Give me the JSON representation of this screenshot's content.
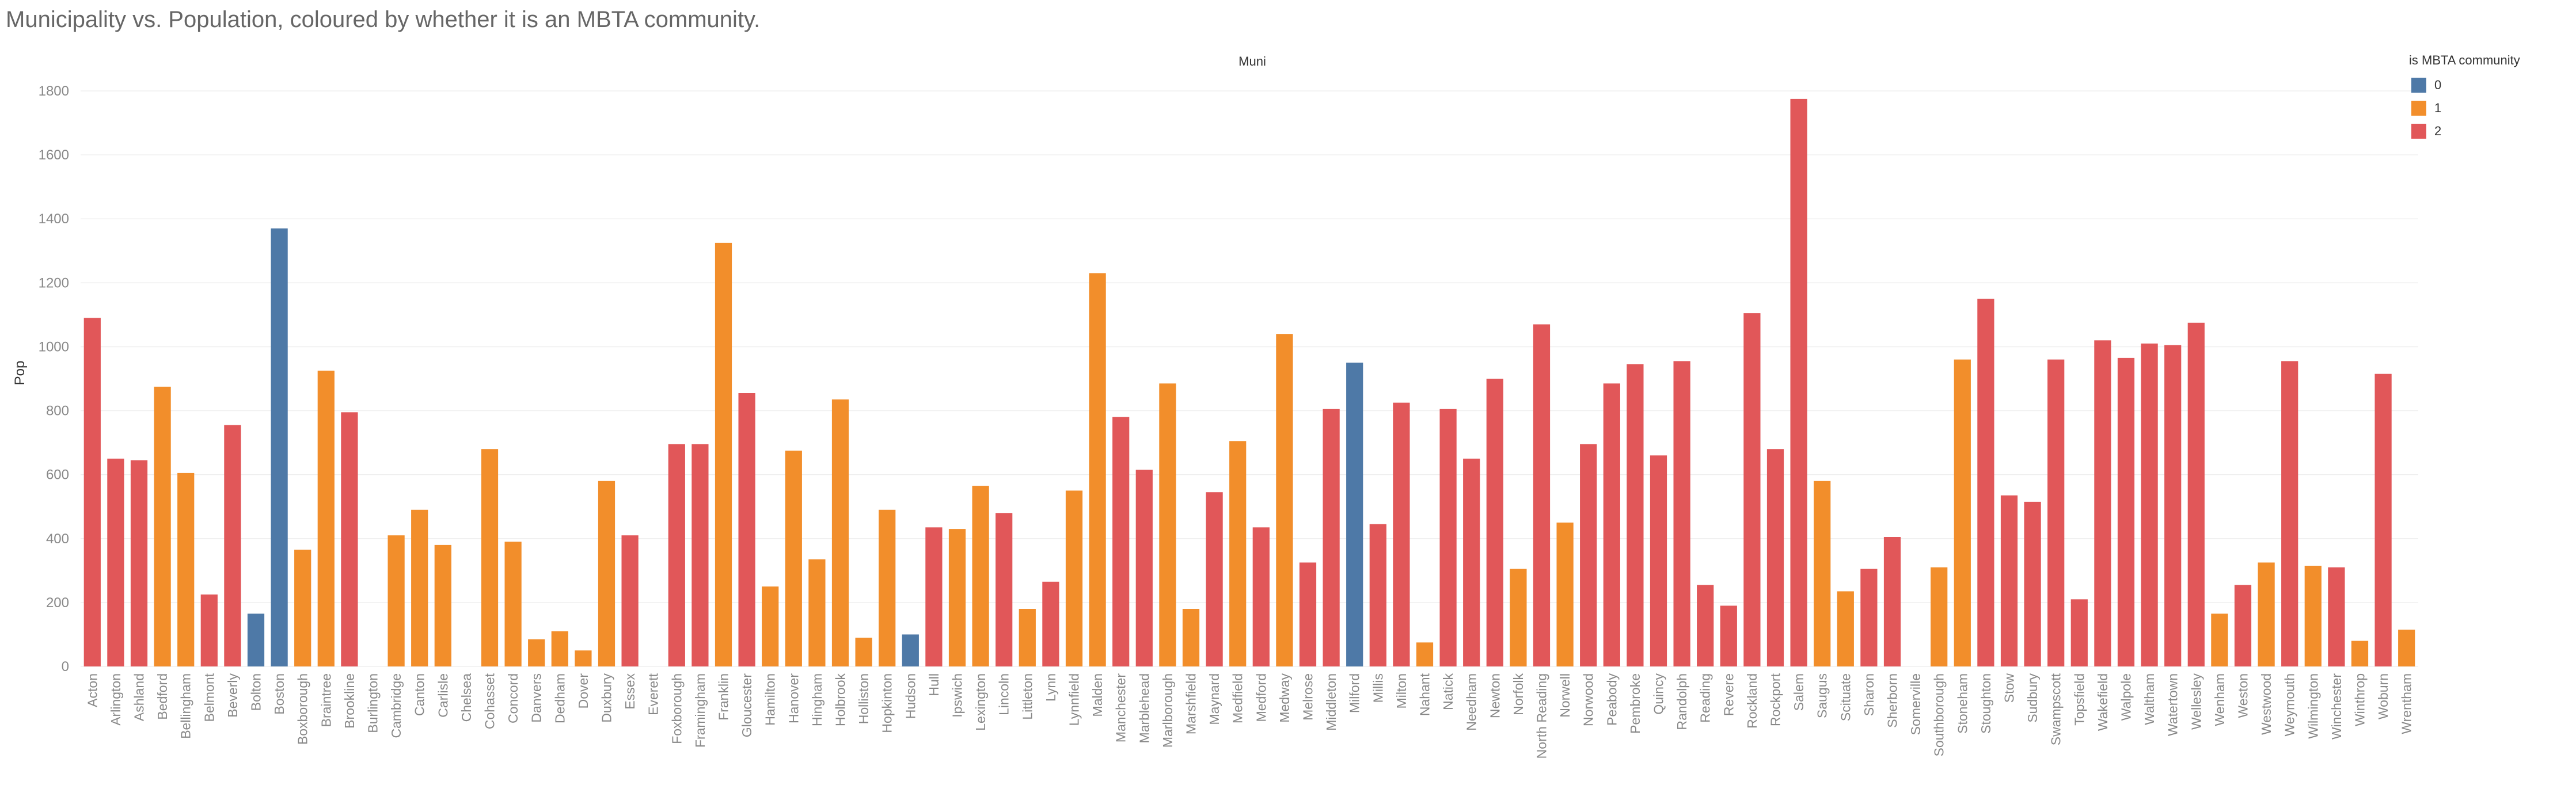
{
  "chart_data": {
    "type": "bar",
    "title": "Municipality vs. Population, coloured by whether it is an MBTA community.",
    "header": "Muni",
    "ylabel": "Pop",
    "ylim": [
      0,
      1800
    ],
    "yticks": [
      0,
      200,
      400,
      600,
      800,
      1000,
      1200,
      1400,
      1600,
      1800
    ],
    "grid": true,
    "legend": {
      "title": "is MBTA community",
      "placement": "top-right",
      "items": [
        {
          "label": "0",
          "color": "#4e79a7"
        },
        {
          "label": "1",
          "color": "#f28e2b"
        },
        {
          "label": "2",
          "color": "#e15759"
        }
      ]
    },
    "categories": [
      "Acton",
      "Arlington",
      "Ashland",
      "Bedford",
      "Bellingham",
      "Belmont",
      "Beverly",
      "Bolton",
      "Boston",
      "Boxborough",
      "Braintree",
      "Brookline",
      "Burlington",
      "Cambridge",
      "Canton",
      "Carlisle",
      "Chelsea",
      "Cohasset",
      "Concord",
      "Danvers",
      "Dedham",
      "Dover",
      "Duxbury",
      "Essex",
      "Everett",
      "Foxborough",
      "Framingham",
      "Franklin",
      "Gloucester",
      "Hamilton",
      "Hanover",
      "Hingham",
      "Holbrook",
      "Holliston",
      "Hopkinton",
      "Hudson",
      "Hull",
      "Ipswich",
      "Lexington",
      "Lincoln",
      "Littleton",
      "Lynn",
      "Lynnfield",
      "Malden",
      "Manchester",
      "Marblehead",
      "Marlborough",
      "Marshfield",
      "Maynard",
      "Medfield",
      "Medford",
      "Medway",
      "Melrose",
      "Middleton",
      "Milford",
      "Millis",
      "Milton",
      "Nahant",
      "Natick",
      "Needham",
      "Newton",
      "Norfolk",
      "North Reading",
      "Norwell",
      "Norwood",
      "Peabody",
      "Pembroke",
      "Quincy",
      "Randolph",
      "Reading",
      "Revere",
      "Rockland",
      "Rockport",
      "Salem",
      "Saugus",
      "Scituate",
      "Sharon",
      "Sherborn",
      "Somerville",
      "Southborough",
      "Stoneham",
      "Stoughton",
      "Stow",
      "Sudbury",
      "Swampscott",
      "Topsfield",
      "Wakefield",
      "Walpole",
      "Waltham",
      "Watertown",
      "Wellesley",
      "Wenham",
      "Weston",
      "Westwood",
      "Weymouth",
      "Wilmington",
      "Winchester",
      "Winthrop",
      "Woburn",
      "Wrentham"
    ],
    "values": [
      1090,
      650,
      645,
      875,
      605,
      225,
      755,
      165,
      1370,
      365,
      925,
      795,
      null,
      410,
      490,
      380,
      null,
      680,
      390,
      85,
      110,
      50,
      580,
      410,
      null,
      695,
      695,
      1325,
      855,
      250,
      675,
      335,
      835,
      90,
      490,
      100,
      435,
      430,
      565,
      480,
      180,
      265,
      550,
      1230,
      780,
      615,
      885,
      180,
      545,
      705,
      435,
      1040,
      325,
      805,
      950,
      445,
      825,
      75,
      805,
      650,
      900,
      305,
      1070,
      450,
      695,
      885,
      945,
      660,
      955,
      255,
      190,
      1105,
      680,
      1775,
      580,
      235,
      305,
      405,
      null,
      310,
      960,
      1150,
      535,
      515,
      960,
      210,
      1020,
      965,
      1010,
      1005,
      1075,
      165,
      255,
      325,
      955,
      315,
      310,
      80,
      915,
      115
    ],
    "groups": [
      2,
      2,
      2,
      1,
      1,
      2,
      2,
      0,
      0,
      1,
      1,
      2,
      1,
      1,
      1,
      1,
      1,
      1,
      1,
      1,
      1,
      1,
      1,
      2,
      2,
      2,
      2,
      1,
      2,
      1,
      1,
      1,
      1,
      1,
      1,
      0,
      2,
      1,
      1,
      2,
      1,
      2,
      1,
      1,
      2,
      2,
      1,
      1,
      2,
      1,
      2,
      1,
      2,
      2,
      0,
      2,
      2,
      1,
      2,
      2,
      2,
      1,
      2,
      1,
      2,
      2,
      2,
      2,
      2,
      2,
      2,
      2,
      2,
      2,
      1,
      1,
      2,
      2,
      1,
      1,
      1,
      2,
      2,
      2,
      2,
      2,
      2,
      2,
      2,
      2,
      2,
      1,
      2,
      1,
      2,
      1,
      2,
      1,
      2,
      1
    ]
  }
}
